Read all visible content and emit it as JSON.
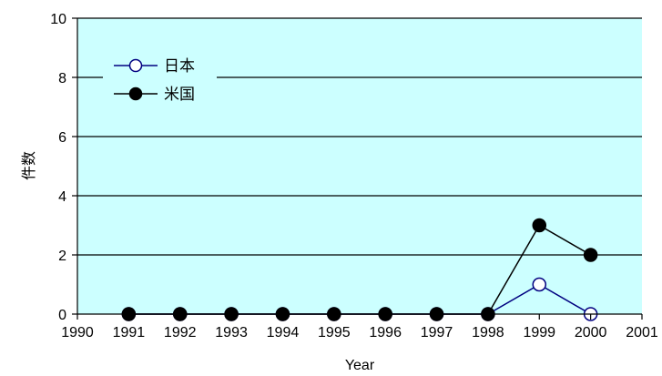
{
  "chart_data": {
    "type": "line",
    "title": "",
    "xlabel": "Year",
    "ylabel": "件数",
    "xlim": [
      1990,
      2001
    ],
    "ylim": [
      0,
      10
    ],
    "x_ticks": [
      1990,
      1991,
      1992,
      1993,
      1994,
      1995,
      1996,
      1997,
      1998,
      1999,
      2000,
      2001
    ],
    "y_ticks": [
      0,
      2,
      4,
      6,
      8,
      10
    ],
    "grid": true,
    "legend_position": "top-left",
    "background_color": "#ccffff",
    "series": [
      {
        "name": "日本",
        "color": "#000080",
        "marker": "open-circle",
        "x": [
          1991,
          1992,
          1993,
          1994,
          1995,
          1996,
          1997,
          1998,
          1999,
          2000
        ],
        "values": [
          0,
          0,
          0,
          0,
          0,
          0,
          0,
          0,
          1,
          0
        ]
      },
      {
        "name": "米国",
        "color": "#000000",
        "marker": "filled-circle",
        "x": [
          1991,
          1992,
          1993,
          1994,
          1995,
          1996,
          1997,
          1998,
          1999,
          2000
        ],
        "values": [
          0,
          0,
          0,
          0,
          0,
          0,
          0,
          0,
          3,
          2
        ]
      }
    ]
  }
}
